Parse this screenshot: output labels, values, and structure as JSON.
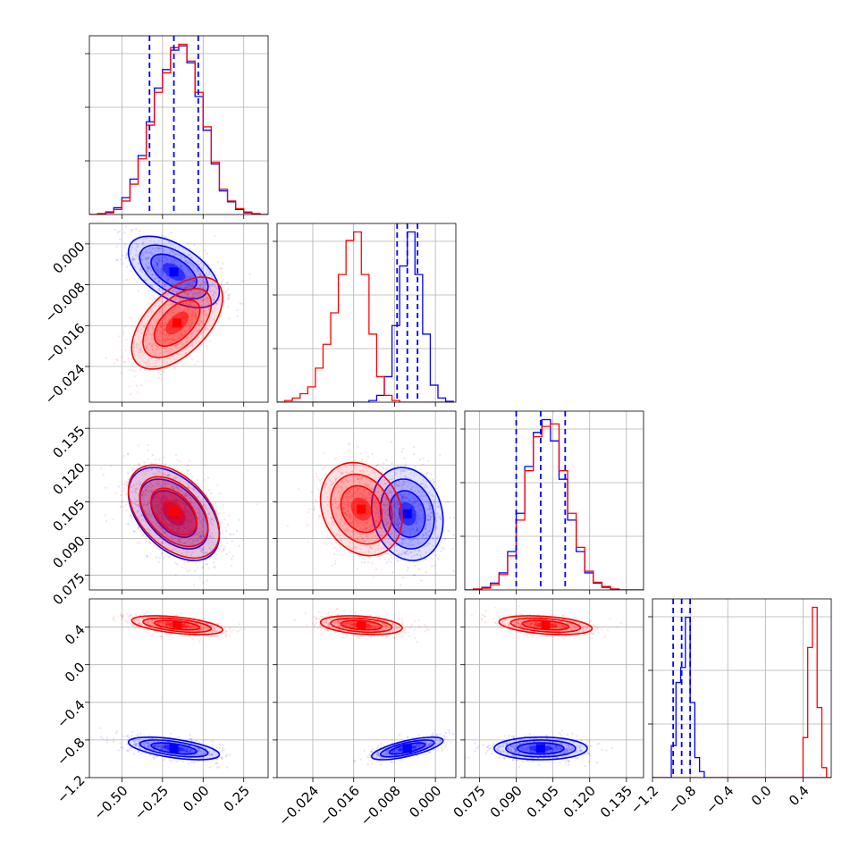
{
  "chart_data": {
    "type": "corner",
    "colors": {
      "series_a": "#0000ff",
      "series_b": "#ff0000"
    },
    "grid": true,
    "series": [
      {
        "color": "#0000ff"
      },
      {
        "color": "#ff0000"
      }
    ],
    "parameters": [
      {
        "range": [
          -0.7,
          0.4
        ],
        "ticks": [
          "−0.50",
          "−0.25",
          "0.00",
          "0.25"
        ],
        "tick_values": [
          -0.5,
          -0.25,
          0.0,
          0.25
        ]
      },
      {
        "range": [
          -0.031,
          0.004
        ],
        "ticks": [
          "−0.024",
          "−0.016",
          "−0.008",
          "0.000"
        ],
        "tick_values": [
          -0.024,
          -0.016,
          -0.008,
          0.0
        ]
      },
      {
        "range": [
          0.069,
          0.142
        ],
        "ticks": [
          "0.075",
          "0.090",
          "0.105",
          "0.120",
          "0.135"
        ],
        "tick_values": [
          0.075,
          0.09,
          0.105,
          0.12,
          0.135
        ]
      },
      {
        "range": [
          -1.2,
          0.7
        ],
        "ticks": [
          "−1.2",
          "−0.8",
          "−0.4",
          "0.0",
          "0.4"
        ],
        "tick_values": [
          -1.2,
          -0.8,
          -0.4,
          0.0,
          0.4
        ]
      }
    ],
    "quantiles_series_a": [
      [
        -0.33,
        -0.18,
        -0.03
      ],
      [
        -0.0075,
        -0.0055,
        -0.0035
      ],
      [
        0.09,
        0.1,
        0.11
      ],
      [
        -0.98,
        -0.89,
        -0.8
      ]
    ],
    "histograms": [
      {
        "bin_edges": [
          -0.7,
          -0.65,
          -0.6,
          -0.55,
          -0.5,
          -0.45,
          -0.4,
          -0.35,
          -0.3,
          -0.25,
          -0.2,
          -0.15,
          -0.1,
          -0.05,
          0.0,
          0.05,
          0.1,
          0.15,
          0.2,
          0.25,
          0.3,
          0.35,
          0.4
        ],
        "series_a": [
          0,
          1,
          3,
          8,
          20,
          42,
          70,
          110,
          150,
          172,
          195,
          200,
          180,
          140,
          100,
          60,
          28,
          15,
          6,
          2,
          1,
          0
        ],
        "series_b": [
          0,
          1,
          2,
          6,
          16,
          36,
          66,
          106,
          145,
          168,
          198,
          202,
          182,
          145,
          104,
          62,
          30,
          16,
          7,
          3,
          1,
          0
        ]
      },
      {
        "bin_edges": [
          -0.031,
          -0.0295,
          -0.028,
          -0.0265,
          -0.025,
          -0.0235,
          -0.022,
          -0.0205,
          -0.019,
          -0.0175,
          -0.016,
          -0.0145,
          -0.013,
          -0.0115,
          -0.01,
          -0.0085,
          -0.007,
          -0.0055,
          -0.004,
          -0.0025,
          -0.001,
          0.0005,
          0.002,
          0.0035
        ],
        "series_a": [
          0,
          0,
          0,
          0,
          0,
          0,
          0,
          0,
          0,
          0,
          0,
          0,
          2,
          8,
          30,
          90,
          160,
          200,
          150,
          80,
          20,
          5,
          1
        ],
        "series_b": [
          0,
          2,
          5,
          10,
          18,
          40,
          68,
          105,
          150,
          190,
          200,
          150,
          80,
          30,
          8,
          2,
          0,
          0,
          0,
          0,
          0,
          0,
          0
        ]
      },
      {
        "bin_edges": [
          0.069,
          0.0725,
          0.076,
          0.0795,
          0.083,
          0.0865,
          0.09,
          0.0935,
          0.097,
          0.1005,
          0.104,
          0.1075,
          0.111,
          0.1145,
          0.118,
          0.1215,
          0.125,
          0.1285,
          0.132,
          0.1355,
          0.139,
          0.142
        ],
        "series_a": [
          0,
          1,
          3,
          8,
          20,
          45,
          90,
          145,
          185,
          200,
          175,
          130,
          82,
          45,
          20,
          8,
          3,
          1,
          0,
          0,
          0
        ],
        "series_b": [
          0,
          1,
          2,
          6,
          18,
          40,
          82,
          140,
          180,
          192,
          195,
          140,
          90,
          50,
          22,
          9,
          4,
          1,
          0,
          0,
          0
        ]
      },
      {
        "bin_edges": [
          -1.2,
          -1.15,
          -1.1,
          -1.05,
          -1.0,
          -0.95,
          -0.9,
          -0.85,
          -0.8,
          -0.75,
          -0.7,
          -0.65,
          -0.6,
          -0.55,
          -0.5,
          -0.45,
          -0.4,
          -0.35,
          -0.3,
          -0.25,
          -0.2,
          -0.15,
          -0.1,
          -0.05,
          0.0,
          0.05,
          0.1,
          0.15,
          0.2,
          0.25,
          0.3,
          0.35,
          0.4,
          0.45,
          0.5,
          0.55,
          0.6,
          0.65,
          0.7
        ],
        "series_a": [
          0,
          0,
          0,
          0,
          32,
          95,
          110,
          160,
          75,
          20,
          6,
          0,
          0,
          0,
          0,
          0,
          0,
          0,
          0,
          0,
          0,
          0,
          0,
          0,
          0,
          0,
          0,
          0,
          0,
          0,
          0,
          0,
          0,
          0,
          0,
          0,
          0,
          0
        ],
        "series_b": [
          0,
          0,
          0,
          0,
          0,
          0,
          0,
          0,
          0,
          0,
          0,
          0,
          0,
          0,
          0,
          0,
          0,
          0,
          0,
          0,
          0,
          0,
          0,
          0,
          0,
          0,
          0,
          0,
          0,
          0,
          0,
          0,
          40,
          130,
          170,
          70,
          10,
          0
        ]
      }
    ],
    "pairs": [
      {
        "row": 1,
        "col": 0,
        "series_a": {
          "mean": [
            -0.18,
            -0.0055
          ],
          "sd": [
            0.14,
            0.0035
          ],
          "corr": -0.55
        },
        "series_b": {
          "mean": [
            -0.16,
            -0.0155
          ],
          "sd": [
            0.14,
            0.0045
          ],
          "corr": 0.55
        }
      },
      {
        "row": 2,
        "col": 0,
        "series_a": {
          "mean": [
            -0.18,
            0.1
          ],
          "sd": [
            0.14,
            0.0095
          ],
          "corr": -0.45
        },
        "series_b": {
          "mean": [
            -0.18,
            0.101
          ],
          "sd": [
            0.14,
            0.0095
          ],
          "corr": -0.45
        }
      },
      {
        "row": 2,
        "col": 1,
        "series_a": {
          "mean": [
            -0.0055,
            0.1
          ],
          "sd": [
            0.0035,
            0.0095
          ],
          "corr": -0.15
        },
        "series_b": {
          "mean": [
            -0.0145,
            0.102
          ],
          "sd": [
            0.004,
            0.0095
          ],
          "corr": -0.2
        }
      },
      {
        "row": 3,
        "col": 0,
        "series_a": {
          "mean": [
            -0.18,
            -0.89
          ],
          "sd": [
            0.14,
            0.06
          ],
          "corr": -0.55
        },
        "series_b": {
          "mean": [
            -0.16,
            0.42
          ],
          "sd": [
            0.14,
            0.05
          ],
          "corr": -0.5
        }
      },
      {
        "row": 3,
        "col": 1,
        "series_a": {
          "mean": [
            -0.0055,
            -0.89
          ],
          "sd": [
            0.0035,
            0.06
          ],
          "corr": 0.7
        },
        "series_b": {
          "mean": [
            -0.0145,
            0.42
          ],
          "sd": [
            0.004,
            0.05
          ],
          "corr": -0.3
        }
      },
      {
        "row": 3,
        "col": 2,
        "series_a": {
          "mean": [
            0.1,
            -0.89
          ],
          "sd": [
            0.0095,
            0.06
          ],
          "corr": 0.0
        },
        "series_b": {
          "mean": [
            0.102,
            0.42
          ],
          "sd": [
            0.0095,
            0.05
          ],
          "corr": -0.35
        }
      }
    ]
  }
}
